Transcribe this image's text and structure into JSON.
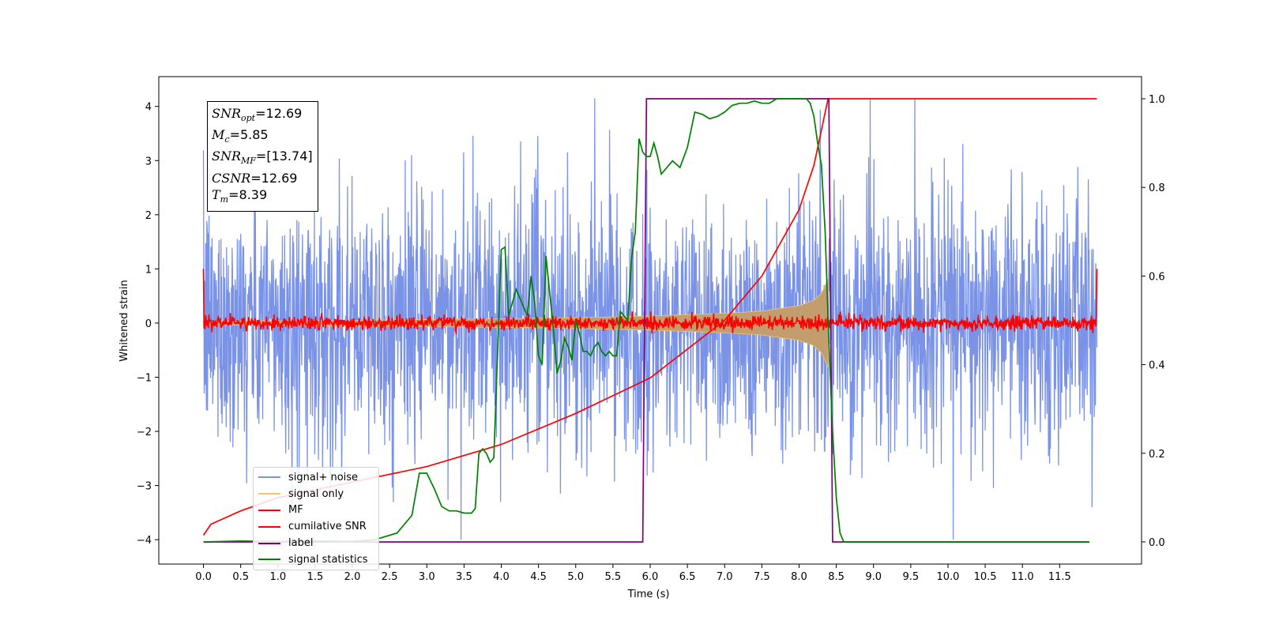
{
  "chart_data": {
    "type": "line",
    "xlabel": "Time (s)",
    "ylabel": "Whitened strain",
    "xlim": [
      -0.6,
      12.6
    ],
    "ylim_left": [
      -4.45,
      4.55
    ],
    "ylim_right": [
      -0.05,
      1.05
    ],
    "x_ticks": [
      "0.0",
      "0.5",
      "1.0",
      "1.5",
      "2.0",
      "2.5",
      "3.0",
      "3.5",
      "4.0",
      "4.5",
      "5.0",
      "5.5",
      "6.0",
      "6.5",
      "7.0",
      "7.5",
      "8.0",
      "8.5",
      "9.0",
      "9.5",
      "10.0",
      "10.5",
      "11.0",
      "11.5"
    ],
    "y_ticks_left": [
      "4",
      "3",
      "2",
      "1",
      "0",
      "−1",
      "−2",
      "−3",
      "−4"
    ],
    "y_ticks_right": [
      "1.0",
      "0.8",
      "0.6",
      "0.4",
      "0.2",
      "0.0"
    ],
    "annotations": {
      "snr_opt": "=12.69",
      "mc": "=5.85",
      "snr_mf": "=[13.74]",
      "csnr": "=12.69",
      "tm": "=8.39"
    },
    "legend_position": "lower-left",
    "series": [
      {
        "name": "signal+ noise",
        "color": "#7b93e6",
        "axis": "left",
        "description_values": {
          "t_start": 0,
          "t_end": 12,
          "amplitude_range": [
            -4,
            4.15
          ]
        }
      },
      {
        "name": "signal only",
        "color": "#f5c46e",
        "axis": "left",
        "envelope": {
          "t": [
            0,
            2,
            4,
            5,
            6,
            7,
            7.5,
            8.0,
            8.2,
            8.3,
            8.39
          ],
          "amp": [
            0.03,
            0.05,
            0.08,
            0.1,
            0.13,
            0.18,
            0.22,
            0.32,
            0.42,
            0.55,
            0.82
          ]
        }
      },
      {
        "name": "MF",
        "color": "#ff0000",
        "axis": "left",
        "noise_amplitude": 0.12,
        "edge_value": 1.0
      },
      {
        "name": "cumilative SNR",
        "color": "#ff0000",
        "axis": "right",
        "x": [
          0,
          0.1,
          0.5,
          1,
          2,
          3,
          4,
          5,
          6,
          7,
          7.5,
          8,
          8.2,
          8.39,
          8.4,
          12
        ],
        "y": [
          0.015,
          0.04,
          0.07,
          0.1,
          0.135,
          0.17,
          0.22,
          0.29,
          0.37,
          0.5,
          0.6,
          0.75,
          0.85,
          1.0,
          1.0,
          1.0
        ]
      },
      {
        "name": "label",
        "color": "#800080",
        "axis": "right",
        "x": [
          0,
          5.9,
          5.95,
          8.4,
          8.45,
          11.9
        ],
        "y": [
          0,
          0,
          1,
          1,
          0,
          0
        ]
      },
      {
        "name": "signal statistics",
        "color": "#008000",
        "axis": "right",
        "x": [
          0,
          0.5,
          1,
          1.5,
          2,
          2.3,
          2.6,
          2.8,
          2.9,
          3.0,
          3.1,
          3.2,
          3.3,
          3.4,
          3.5,
          3.6,
          3.65,
          3.7,
          3.75,
          3.8,
          3.85,
          3.9,
          4.0,
          4.05,
          4.1,
          4.2,
          4.3,
          4.35,
          4.4,
          4.45,
          4.5,
          4.55,
          4.6,
          4.7,
          4.75,
          4.8,
          4.85,
          4.9,
          4.95,
          5.0,
          5.05,
          5.1,
          5.15,
          5.2,
          5.25,
          5.3,
          5.35,
          5.4,
          5.45,
          5.5,
          5.55,
          5.6,
          5.65,
          5.7,
          5.75,
          5.8,
          5.85,
          5.9,
          5.95,
          6.0,
          6.05,
          6.1,
          6.15,
          6.2,
          6.3,
          6.4,
          6.5,
          6.6,
          6.7,
          6.8,
          6.9,
          7.0,
          7.1,
          7.2,
          7.3,
          7.4,
          7.5,
          7.6,
          7.7,
          7.8,
          7.9,
          8.0,
          8.1,
          8.15,
          8.2,
          8.25,
          8.3,
          8.35,
          8.4,
          8.45,
          8.5,
          8.55,
          8.6,
          8.7,
          9,
          10,
          11,
          11.9
        ],
        "y": [
          0,
          0.002,
          0.001,
          0.002,
          0.001,
          0.005,
          0.02,
          0.06,
          0.155,
          0.155,
          0.12,
          0.08,
          0.07,
          0.07,
          0.065,
          0.065,
          0.075,
          0.2,
          0.21,
          0.2,
          0.18,
          0.19,
          0.66,
          0.665,
          0.51,
          0.57,
          0.53,
          0.51,
          0.6,
          0.54,
          0.42,
          0.4,
          0.645,
          0.48,
          0.38,
          0.41,
          0.46,
          0.44,
          0.41,
          0.5,
          0.47,
          0.43,
          0.43,
          0.42,
          0.44,
          0.45,
          0.43,
          0.42,
          0.43,
          0.42,
          0.42,
          0.52,
          0.51,
          0.5,
          0.64,
          0.7,
          0.91,
          0.88,
          0.87,
          0.87,
          0.9,
          0.87,
          0.83,
          0.84,
          0.86,
          0.845,
          0.89,
          0.97,
          0.965,
          0.955,
          0.96,
          0.97,
          0.985,
          0.99,
          0.99,
          0.995,
          0.99,
          0.99,
          1.0,
          1.0,
          1.0,
          1.0,
          1.0,
          0.99,
          0.96,
          0.9,
          0.85,
          0.7,
          0.45,
          0.25,
          0.1,
          0.02,
          0.0,
          0.0,
          0.0,
          0.0,
          0.0,
          0.0
        ]
      }
    ]
  }
}
